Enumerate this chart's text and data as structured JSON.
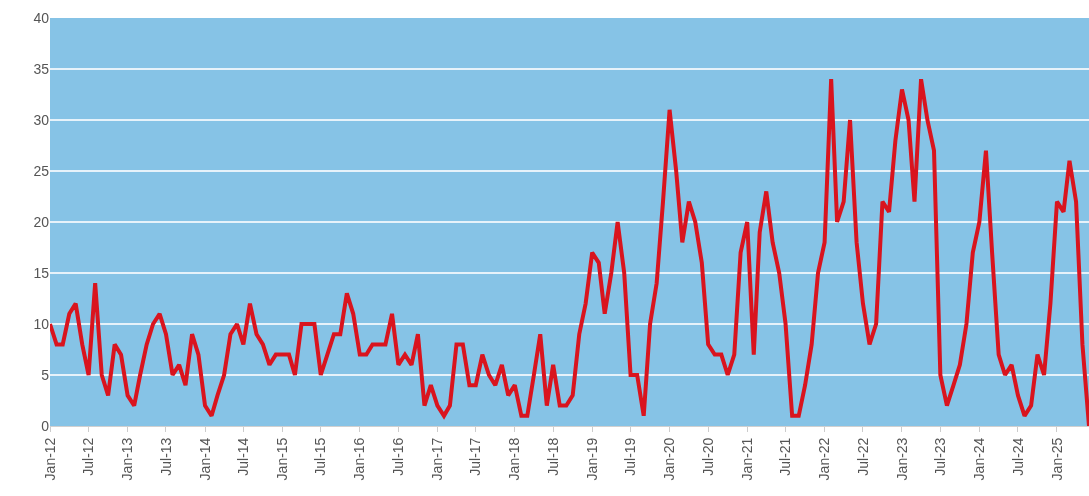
{
  "chart_data": {
    "type": "line",
    "x": [
      "2012-01",
      "2012-02",
      "2012-03",
      "2012-04",
      "2012-05",
      "2012-06",
      "2012-07",
      "2012-08",
      "2012-09",
      "2012-10",
      "2012-11",
      "2012-12",
      "2013-01",
      "2013-02",
      "2013-03",
      "2013-04",
      "2013-05",
      "2013-06",
      "2013-07",
      "2013-08",
      "2013-09",
      "2013-10",
      "2013-11",
      "2013-12",
      "2014-01",
      "2014-02",
      "2014-03",
      "2014-04",
      "2014-05",
      "2014-06",
      "2014-07",
      "2014-08",
      "2014-09",
      "2014-10",
      "2014-11",
      "2014-12",
      "2015-01",
      "2015-02",
      "2015-03",
      "2015-04",
      "2015-05",
      "2015-06",
      "2015-07",
      "2015-08",
      "2015-09",
      "2015-10",
      "2015-11",
      "2015-12",
      "2016-01",
      "2016-02",
      "2016-03",
      "2016-04",
      "2016-05",
      "2016-06",
      "2016-07",
      "2016-08",
      "2016-09",
      "2016-10",
      "2016-11",
      "2016-12",
      "2017-01",
      "2017-02",
      "2017-03",
      "2017-04",
      "2017-05",
      "2017-06",
      "2017-07",
      "2017-08",
      "2017-09",
      "2017-10",
      "2017-11",
      "2017-12",
      "2018-01",
      "2018-02",
      "2018-03",
      "2018-04",
      "2018-05",
      "2018-06",
      "2018-07",
      "2018-08",
      "2018-09",
      "2018-10",
      "2018-11",
      "2018-12",
      "2019-01",
      "2019-02",
      "2019-03",
      "2019-04",
      "2019-05",
      "2019-06",
      "2019-07",
      "2019-08",
      "2019-09",
      "2019-10",
      "2019-11",
      "2019-12",
      "2020-01",
      "2020-02",
      "2020-03",
      "2020-04",
      "2020-05",
      "2020-06",
      "2020-07",
      "2020-08",
      "2020-09",
      "2020-10",
      "2020-11",
      "2020-12",
      "2021-01",
      "2021-02",
      "2021-03",
      "2021-04",
      "2021-05",
      "2021-06",
      "2021-07",
      "2021-08",
      "2021-09",
      "2021-10",
      "2021-11",
      "2021-12",
      "2022-01",
      "2022-02",
      "2022-03",
      "2022-04",
      "2022-05",
      "2022-06",
      "2022-07",
      "2022-08",
      "2022-09",
      "2022-10",
      "2022-11",
      "2022-12",
      "2023-01",
      "2023-02",
      "2023-03",
      "2023-04",
      "2023-05",
      "2023-06",
      "2023-07",
      "2023-08",
      "2023-09",
      "2023-10",
      "2023-11",
      "2023-12",
      "2024-01",
      "2024-02",
      "2024-03",
      "2024-04",
      "2024-05",
      "2024-06",
      "2024-07",
      "2024-08",
      "2024-09",
      "2024-10",
      "2024-11",
      "2024-12",
      "2025-01",
      "2025-02",
      "2025-03",
      "2025-04",
      "2025-05",
      "2025-06"
    ],
    "series": [
      {
        "color": "#d9141e",
        "values": [
          10,
          8,
          8,
          11,
          12,
          8,
          5,
          14,
          5,
          3,
          8,
          7,
          3,
          2,
          5,
          8,
          10,
          11,
          9,
          5,
          6,
          4,
          9,
          7,
          2,
          1,
          3,
          5,
          9,
          10,
          8,
          12,
          9,
          8,
          6,
          7,
          7,
          7,
          5,
          10,
          10,
          10,
          5,
          7,
          9,
          9,
          13,
          11,
          7,
          7,
          8,
          8,
          8,
          11,
          6,
          7,
          6,
          9,
          2,
          4,
          2,
          1,
          2,
          8,
          8,
          4,
          4,
          7,
          5,
          4,
          6,
          3,
          4,
          1,
          1,
          5,
          9,
          2,
          6,
          2,
          2,
          3,
          9,
          12,
          17,
          16,
          11,
          15,
          20,
          15,
          5,
          5,
          1,
          10,
          14,
          22,
          31,
          25,
          18,
          22,
          20,
          16,
          8,
          7,
          7,
          5,
          7,
          17,
          20,
          7,
          19,
          23,
          18,
          15,
          10,
          1,
          1,
          4,
          8,
          15,
          18,
          34,
          20,
          22,
          30,
          18,
          12,
          8,
          10,
          22,
          21,
          28,
          33,
          30,
          22,
          34,
          30,
          27,
          5,
          2,
          4,
          6,
          10,
          17,
          20,
          27,
          17,
          7,
          5,
          6,
          3,
          1,
          2,
          7,
          5,
          12,
          22,
          21,
          26,
          22,
          8,
          0
        ]
      }
    ],
    "xlim": [
      "2012-01",
      "2025-06"
    ],
    "xticks": [
      {
        "value": "2012-01",
        "label": "Jan-12"
      },
      {
        "value": "2012-07",
        "label": "Jul-12"
      },
      {
        "value": "2013-01",
        "label": "Jan-13"
      },
      {
        "value": "2013-07",
        "label": "Jul-13"
      },
      {
        "value": "2014-01",
        "label": "Jan-14"
      },
      {
        "value": "2014-07",
        "label": "Jul-14"
      },
      {
        "value": "2015-01",
        "label": "Jan-15"
      },
      {
        "value": "2015-07",
        "label": "Jul-15"
      },
      {
        "value": "2016-01",
        "label": "Jan-16"
      },
      {
        "value": "2016-07",
        "label": "Jul-16"
      },
      {
        "value": "2017-01",
        "label": "Jan-17"
      },
      {
        "value": "2017-07",
        "label": "Jul-17"
      },
      {
        "value": "2018-01",
        "label": "Jan-18"
      },
      {
        "value": "2018-07",
        "label": "Jul-18"
      },
      {
        "value": "2019-01",
        "label": "Jan-19"
      },
      {
        "value": "2019-07",
        "label": "Jul-19"
      },
      {
        "value": "2020-01",
        "label": "Jan-20"
      },
      {
        "value": "2020-07",
        "label": "Jul-20"
      },
      {
        "value": "2021-01",
        "label": "Jan-21"
      },
      {
        "value": "2021-07",
        "label": "Jul-21"
      },
      {
        "value": "2022-01",
        "label": "Jan-22"
      },
      {
        "value": "2022-07",
        "label": "Jul-22"
      },
      {
        "value": "2023-01",
        "label": "Jan-23"
      },
      {
        "value": "2023-07",
        "label": "Jul-23"
      },
      {
        "value": "2024-01",
        "label": "Jan-24"
      },
      {
        "value": "2024-07",
        "label": "Jul-24"
      },
      {
        "value": "2025-01",
        "label": "Jan-25"
      }
    ],
    "ylim": [
      0,
      40
    ],
    "yticks": [
      0,
      5,
      10,
      15,
      20,
      25,
      30,
      35,
      40
    ],
    "grid": "y",
    "marker": "none",
    "line_style": "solid"
  }
}
